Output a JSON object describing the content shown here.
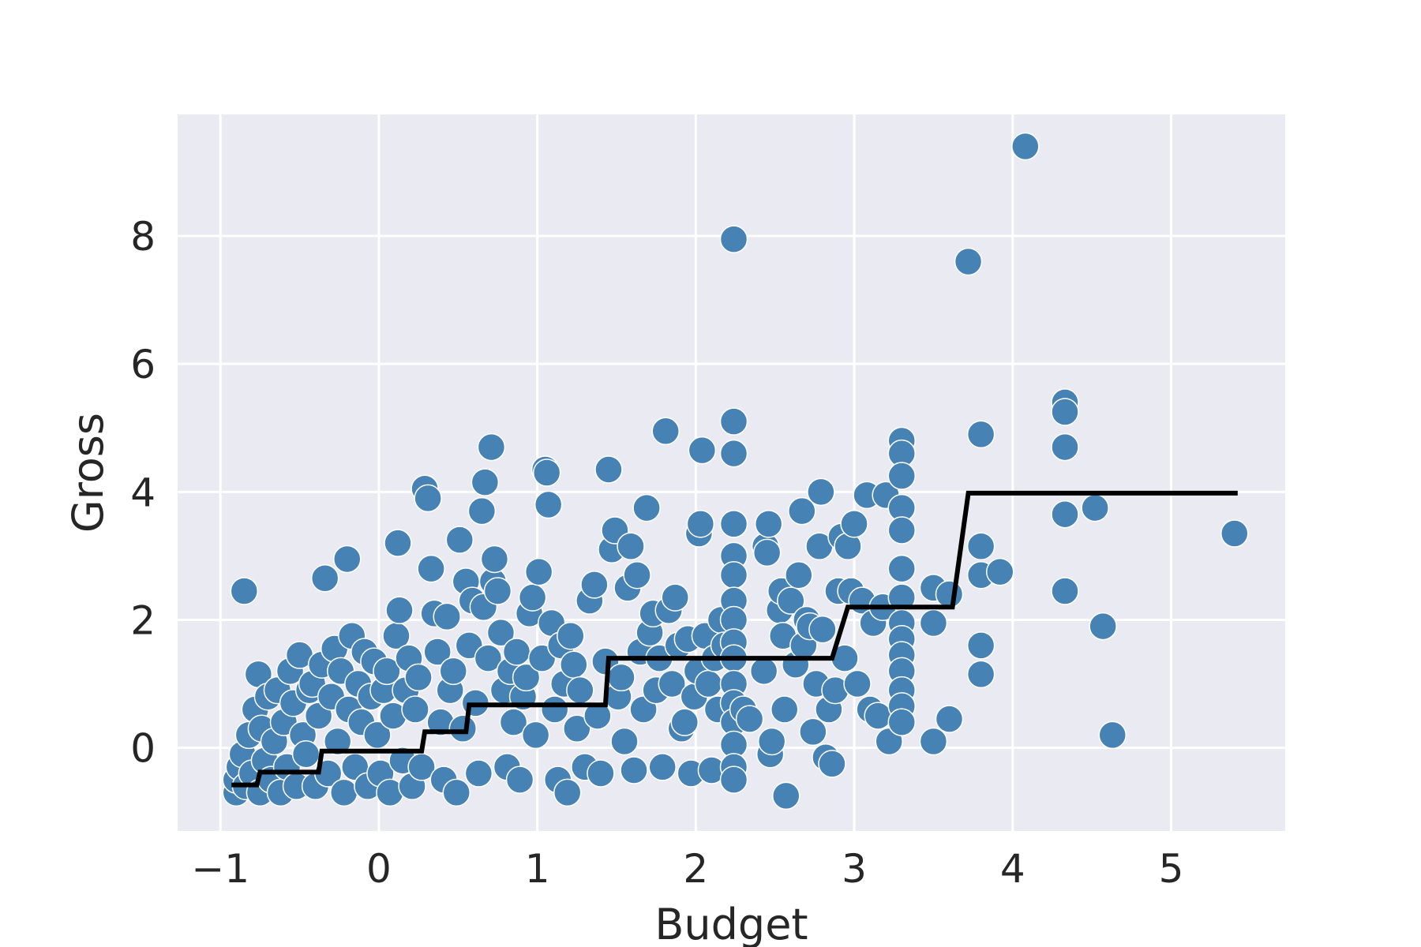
{
  "chart_data": {
    "type": "scatter",
    "xlabel": "Budget",
    "ylabel": "Gross",
    "xlim": [
      -1.27,
      5.72
    ],
    "ylim": [
      -1.3,
      9.9
    ],
    "xticks": [
      -1,
      0,
      1,
      2,
      3,
      4,
      5
    ],
    "xtick_labels": [
      "−1",
      "0",
      "1",
      "2",
      "3",
      "4",
      "5"
    ],
    "yticks": [
      0,
      2,
      4,
      6,
      8
    ],
    "ytick_labels": [
      "0",
      "2",
      "4",
      "6",
      "8"
    ],
    "grid": true,
    "legend": false,
    "colors": {
      "points": "#4682b4",
      "point_edge": "#ffffff",
      "line": "#000000",
      "background": "#eaeaf2",
      "grid": "#ffffff"
    },
    "series": [
      {
        "type": "scatter",
        "points": [
          [
            -0.9,
            -0.7
          ],
          [
            -0.9,
            -0.5
          ],
          [
            -0.88,
            -0.3
          ],
          [
            -0.86,
            -0.1
          ],
          [
            -0.85,
            2.45
          ],
          [
            -0.84,
            -0.6
          ],
          [
            -0.82,
            0.2
          ],
          [
            -0.8,
            -0.4
          ],
          [
            -0.78,
            0.6
          ],
          [
            -0.76,
            1.15
          ],
          [
            -0.75,
            -0.7
          ],
          [
            -0.74,
            0.3
          ],
          [
            -0.72,
            -0.2
          ],
          [
            -0.7,
            0.8
          ],
          [
            -0.68,
            -0.5
          ],
          [
            -0.66,
            0.1
          ],
          [
            -0.64,
            0.9
          ],
          [
            -0.62,
            -0.7
          ],
          [
            -0.6,
            0.4
          ],
          [
            -0.58,
            -0.3
          ],
          [
            -0.56,
            1.2
          ],
          [
            -0.54,
            0.7
          ],
          [
            -0.52,
            -0.6
          ],
          [
            -0.5,
            1.45
          ],
          [
            -0.48,
            0.2
          ],
          [
            -0.46,
            -0.1
          ],
          [
            -0.44,
            0.9
          ],
          [
            -0.42,
            1.0
          ],
          [
            -0.4,
            -0.6
          ],
          [
            -0.38,
            0.5
          ],
          [
            -0.36,
            1.3
          ],
          [
            -0.34,
            2.65
          ],
          [
            -0.32,
            -0.4
          ],
          [
            -0.3,
            0.8
          ],
          [
            -0.28,
            1.55
          ],
          [
            -0.26,
            0.1
          ],
          [
            -0.24,
            1.2
          ],
          [
            -0.22,
            -0.7
          ],
          [
            -0.2,
            2.95
          ],
          [
            -0.19,
            0.6
          ],
          [
            -0.17,
            1.75
          ],
          [
            -0.15,
            -0.3
          ],
          [
            -0.13,
            1.0
          ],
          [
            -0.11,
            0.4
          ],
          [
            -0.09,
            1.5
          ],
          [
            -0.07,
            -0.6
          ],
          [
            -0.05,
            0.8
          ],
          [
            -0.03,
            1.35
          ],
          [
            -0.01,
            0.2
          ],
          [
            0.01,
            -0.4
          ],
          [
            0.03,
            0.9
          ],
          [
            0.05,
            1.2
          ],
          [
            0.07,
            -0.7
          ],
          [
            0.09,
            0.5
          ],
          [
            0.11,
            1.75
          ],
          [
            0.12,
            3.2
          ],
          [
            0.13,
            2.15
          ],
          [
            0.15,
            -0.2
          ],
          [
            0.17,
            0.9
          ],
          [
            0.19,
            1.4
          ],
          [
            0.21,
            -0.6
          ],
          [
            0.23,
            0.6
          ],
          [
            0.25,
            1.1
          ],
          [
            0.27,
            -0.3
          ],
          [
            0.29,
            4.05
          ],
          [
            0.31,
            3.9
          ],
          [
            0.33,
            2.8
          ],
          [
            0.35,
            2.1
          ],
          [
            0.37,
            1.5
          ],
          [
            0.39,
            0.4
          ],
          [
            0.41,
            -0.5
          ],
          [
            0.43,
            2.05
          ],
          [
            0.45,
            0.9
          ],
          [
            0.47,
            1.2
          ],
          [
            0.49,
            -0.7
          ],
          [
            0.51,
            3.25
          ],
          [
            0.53,
            0.3
          ],
          [
            0.55,
            2.6
          ],
          [
            0.57,
            1.6
          ],
          [
            0.59,
            2.3
          ],
          [
            0.61,
            0.7
          ],
          [
            0.63,
            -0.4
          ],
          [
            0.65,
            3.7
          ],
          [
            0.66,
            2.2
          ],
          [
            0.67,
            4.15
          ],
          [
            0.69,
            1.4
          ],
          [
            0.71,
            4.7
          ],
          [
            0.72,
            2.6
          ],
          [
            0.73,
            2.95
          ],
          [
            0.75,
            2.45
          ],
          [
            0.77,
            1.8
          ],
          [
            0.79,
            0.9
          ],
          [
            0.81,
            -0.3
          ],
          [
            0.83,
            1.2
          ],
          [
            0.85,
            0.4
          ],
          [
            0.87,
            1.5
          ],
          [
            0.89,
            -0.5
          ],
          [
            0.91,
            0.8
          ],
          [
            0.93,
            1.1
          ],
          [
            0.95,
            2.1
          ],
          [
            0.97,
            2.35
          ],
          [
            0.99,
            0.2
          ],
          [
            1.01,
            2.75
          ],
          [
            1.03,
            1.4
          ],
          [
            1.05,
            4.35
          ],
          [
            1.06,
            4.3
          ],
          [
            1.07,
            3.8
          ],
          [
            1.09,
            1.95
          ],
          [
            1.11,
            0.6
          ],
          [
            1.13,
            -0.5
          ],
          [
            1.15,
            1.6
          ],
          [
            1.17,
            1.0
          ],
          [
            1.19,
            -0.7
          ],
          [
            1.21,
            1.75
          ],
          [
            1.23,
            1.3
          ],
          [
            1.25,
            0.3
          ],
          [
            1.27,
            0.9
          ],
          [
            1.3,
            -0.3
          ],
          [
            1.33,
            2.3
          ],
          [
            1.36,
            2.55
          ],
          [
            1.38,
            0.5
          ],
          [
            1.4,
            -0.4
          ],
          [
            1.43,
            1.35
          ],
          [
            1.45,
            4.35
          ],
          [
            1.47,
            3.1
          ],
          [
            1.49,
            3.4
          ],
          [
            1.51,
            0.8
          ],
          [
            1.53,
            1.1
          ],
          [
            1.55,
            0.1
          ],
          [
            1.57,
            2.5
          ],
          [
            1.59,
            3.15
          ],
          [
            1.61,
            -0.35
          ],
          [
            1.63,
            2.7
          ],
          [
            1.65,
            1.5
          ],
          [
            1.67,
            0.6
          ],
          [
            1.69,
            3.75
          ],
          [
            1.71,
            1.8
          ],
          [
            1.73,
            2.1
          ],
          [
            1.75,
            0.9
          ],
          [
            1.77,
            1.4
          ],
          [
            1.79,
            -0.3
          ],
          [
            1.81,
            4.95
          ],
          [
            1.83,
            2.15
          ],
          [
            1.85,
            1.0
          ],
          [
            1.87,
            2.35
          ],
          [
            1.89,
            1.6
          ],
          [
            1.91,
            0.3
          ],
          [
            1.93,
            0.4
          ],
          [
            1.95,
            1.7
          ],
          [
            1.97,
            -0.4
          ],
          [
            1.99,
            0.8
          ],
          [
            2.01,
            1.2
          ],
          [
            2.02,
            3.35
          ],
          [
            2.03,
            3.5
          ],
          [
            2.04,
            4.65
          ],
          [
            2.06,
            1.75
          ],
          [
            2.08,
            1.0
          ],
          [
            2.1,
            -0.35
          ],
          [
            2.12,
            1.4
          ],
          [
            2.14,
            0.6
          ],
          [
            2.16,
            2.0
          ],
          [
            2.18,
            1.6
          ],
          [
            2.24,
            7.95
          ],
          [
            2.24,
            5.1
          ],
          [
            2.24,
            4.6
          ],
          [
            2.24,
            3.5
          ],
          [
            2.24,
            3.0
          ],
          [
            2.24,
            2.7
          ],
          [
            2.24,
            2.3
          ],
          [
            2.24,
            2.0
          ],
          [
            2.24,
            1.65
          ],
          [
            2.24,
            1.4
          ],
          [
            2.24,
            1.0
          ],
          [
            2.24,
            0.7
          ],
          [
            2.24,
            0.4
          ],
          [
            2.24,
            0.05
          ],
          [
            2.24,
            -0.3
          ],
          [
            2.24,
            -0.5
          ],
          [
            2.3,
            0.6
          ],
          [
            2.34,
            0.45
          ],
          [
            2.43,
            1.2
          ],
          [
            2.44,
            3.15
          ],
          [
            2.45,
            3.05
          ],
          [
            2.46,
            3.5
          ],
          [
            2.47,
            -0.1
          ],
          [
            2.48,
            0.1
          ],
          [
            2.53,
            2.15
          ],
          [
            2.54,
            2.45
          ],
          [
            2.55,
            1.75
          ],
          [
            2.56,
            0.6
          ],
          [
            2.57,
            -0.75
          ],
          [
            2.6,
            2.3
          ],
          [
            2.63,
            1.3
          ],
          [
            2.65,
            2.7
          ],
          [
            2.67,
            3.7
          ],
          [
            2.68,
            1.6
          ],
          [
            2.7,
            2.0
          ],
          [
            2.72,
            1.9
          ],
          [
            2.74,
            0.25
          ],
          [
            2.76,
            1.0
          ],
          [
            2.78,
            3.15
          ],
          [
            2.79,
            4.0
          ],
          [
            2.8,
            1.85
          ],
          [
            2.82,
            -0.15
          ],
          [
            2.84,
            0.6
          ],
          [
            2.86,
            -0.25
          ],
          [
            2.88,
            0.9
          ],
          [
            2.9,
            2.45
          ],
          [
            2.92,
            3.3
          ],
          [
            2.94,
            1.4
          ],
          [
            2.96,
            3.15
          ],
          [
            2.98,
            2.45
          ],
          [
            3.0,
            3.5
          ],
          [
            3.02,
            1.0
          ],
          [
            3.05,
            2.3
          ],
          [
            3.08,
            3.95
          ],
          [
            3.1,
            0.6
          ],
          [
            3.12,
            1.95
          ],
          [
            3.15,
            0.5
          ],
          [
            3.18,
            2.2
          ],
          [
            3.2,
            3.95
          ],
          [
            3.22,
            0.1
          ],
          [
            3.3,
            4.8
          ],
          [
            3.3,
            4.6
          ],
          [
            3.3,
            4.25
          ],
          [
            3.3,
            3.75
          ],
          [
            3.3,
            3.4
          ],
          [
            3.3,
            2.8
          ],
          [
            3.3,
            2.35
          ],
          [
            3.3,
            1.95
          ],
          [
            3.3,
            1.7
          ],
          [
            3.3,
            1.45
          ],
          [
            3.3,
            1.2
          ],
          [
            3.3,
            0.9
          ],
          [
            3.3,
            0.65
          ],
          [
            3.3,
            0.4
          ],
          [
            3.5,
            2.5
          ],
          [
            3.5,
            1.95
          ],
          [
            3.5,
            0.1
          ],
          [
            3.6,
            2.4
          ],
          [
            3.6,
            0.45
          ],
          [
            3.72,
            7.6
          ],
          [
            3.8,
            4.9
          ],
          [
            3.8,
            3.15
          ],
          [
            3.8,
            2.7
          ],
          [
            3.8,
            1.6
          ],
          [
            3.8,
            1.15
          ],
          [
            3.92,
            2.75
          ],
          [
            4.08,
            9.4
          ],
          [
            4.33,
            5.4
          ],
          [
            4.33,
            5.25
          ],
          [
            4.33,
            4.7
          ],
          [
            4.33,
            3.65
          ],
          [
            4.33,
            2.45
          ],
          [
            4.52,
            3.75
          ],
          [
            4.57,
            1.9
          ],
          [
            4.63,
            0.2
          ],
          [
            5.4,
            3.35
          ]
        ]
      },
      {
        "type": "step-line",
        "points": [
          [
            -0.93,
            -0.58
          ],
          [
            -0.77,
            -0.58
          ],
          [
            -0.75,
            -0.38
          ],
          [
            -0.38,
            -0.38
          ],
          [
            -0.36,
            -0.05
          ],
          [
            0.27,
            -0.05
          ],
          [
            0.29,
            0.25
          ],
          [
            0.55,
            0.25
          ],
          [
            0.57,
            0.67
          ],
          [
            1.43,
            0.67
          ],
          [
            1.45,
            1.4
          ],
          [
            2.86,
            1.4
          ],
          [
            2.96,
            2.2
          ],
          [
            3.62,
            2.2
          ],
          [
            3.72,
            3.98
          ],
          [
            5.42,
            3.98
          ]
        ]
      }
    ]
  }
}
